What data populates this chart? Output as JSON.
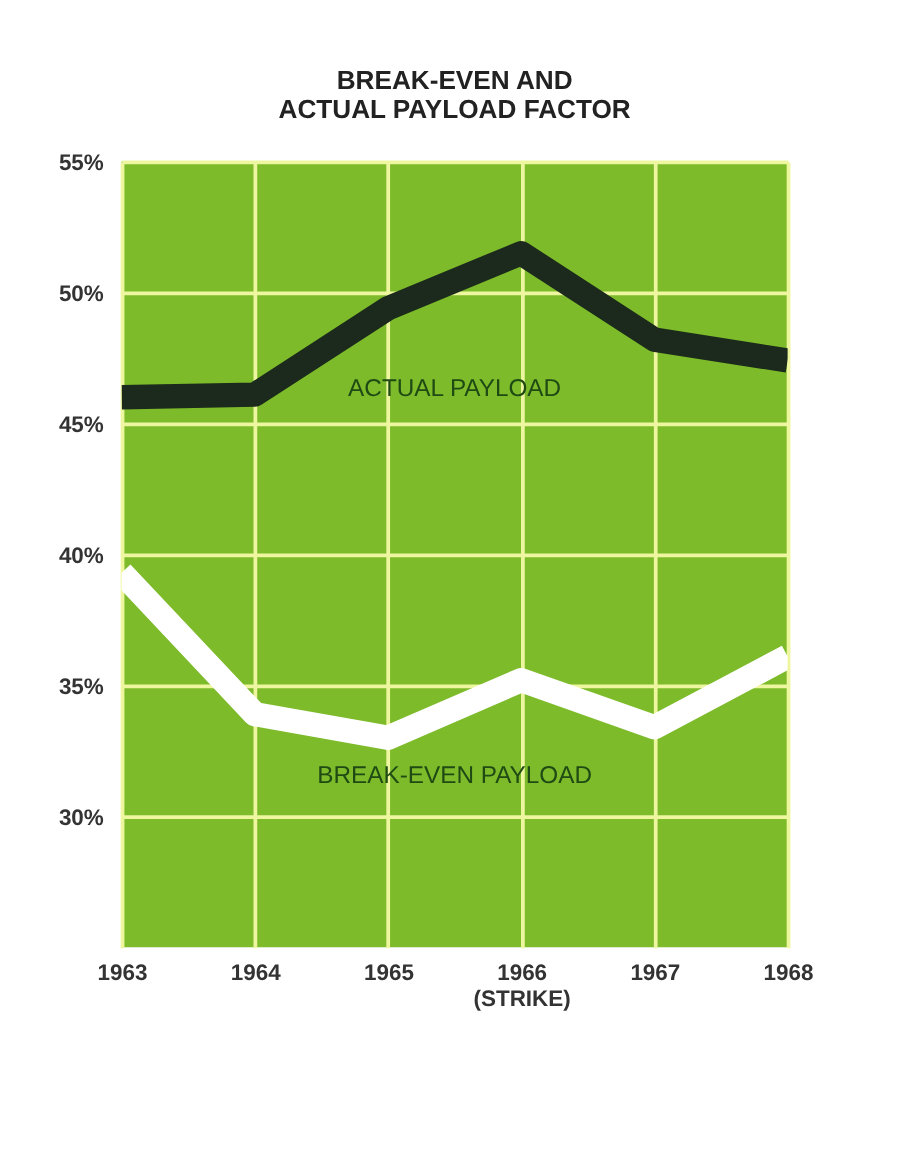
{
  "chart_data": {
    "type": "line",
    "title": "BREAK-EVEN AND\nACTUAL PAYLOAD FACTOR",
    "x": [
      1963,
      1964,
      1965,
      1966,
      1967,
      1968
    ],
    "xlim": [
      1963,
      1968
    ],
    "xticks": [
      1963,
      1964,
      1965,
      {
        "value": 1966,
        "label": "1966\n(STRIKE)"
      },
      1967,
      1968
    ],
    "ylim": [
      25,
      55
    ],
    "yticks": [
      {
        "value": 30,
        "label": "30%"
      },
      {
        "value": 35,
        "label": "35%"
      },
      {
        "value": 40,
        "label": "40%"
      },
      {
        "value": 45,
        "label": "45%"
      },
      {
        "value": 50,
        "label": "50%"
      },
      {
        "value": 55,
        "label": "55%"
      }
    ],
    "grid": true,
    "line_style": "solid",
    "series": [
      {
        "name": "ACTUAL PAYLOAD",
        "color": "#1b2a1c",
        "values": [
          46.0,
          46.1,
          49.4,
          51.5,
          48.2,
          47.4
        ]
      },
      {
        "name": "BREAK-EVEN PAYLOAD",
        "color": "#ffffff",
        "values": [
          39.3,
          33.9,
          33.0,
          35.2,
          33.4,
          36.1
        ]
      }
    ]
  }
}
